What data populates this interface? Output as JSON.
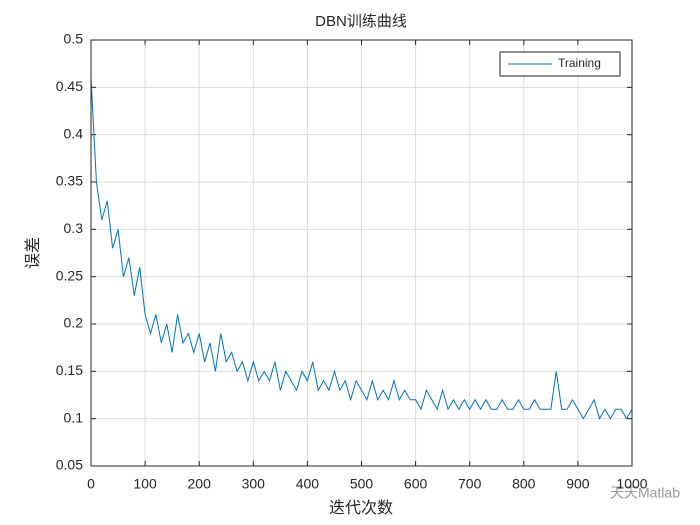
{
  "chart_data": {
    "type": "line",
    "title": "DBN训练曲线",
    "xlabel": "迭代次数",
    "ylabel": "误差",
    "x": [
      0,
      10,
      20,
      30,
      40,
      50,
      60,
      70,
      80,
      90,
      100,
      110,
      120,
      130,
      140,
      150,
      160,
      170,
      180,
      190,
      200,
      210,
      220,
      230,
      240,
      250,
      260,
      270,
      280,
      290,
      300,
      310,
      320,
      330,
      340,
      350,
      360,
      370,
      380,
      390,
      400,
      410,
      420,
      430,
      440,
      450,
      460,
      470,
      480,
      490,
      500,
      510,
      520,
      530,
      540,
      550,
      560,
      570,
      580,
      590,
      600,
      610,
      620,
      630,
      640,
      650,
      660,
      670,
      680,
      690,
      700,
      710,
      720,
      730,
      740,
      750,
      760,
      770,
      780,
      790,
      800,
      810,
      820,
      830,
      840,
      850,
      860,
      870,
      880,
      890,
      900,
      910,
      920,
      930,
      940,
      950,
      960,
      970,
      980,
      990,
      1000
    ],
    "series": [
      {
        "name": "Training",
        "color": "#0072bd",
        "values": [
          0.46,
          0.35,
          0.31,
          0.33,
          0.28,
          0.3,
          0.25,
          0.27,
          0.23,
          0.26,
          0.21,
          0.19,
          0.21,
          0.18,
          0.2,
          0.17,
          0.21,
          0.18,
          0.19,
          0.17,
          0.19,
          0.16,
          0.18,
          0.15,
          0.19,
          0.16,
          0.17,
          0.15,
          0.16,
          0.14,
          0.16,
          0.14,
          0.15,
          0.14,
          0.16,
          0.13,
          0.15,
          0.14,
          0.13,
          0.15,
          0.14,
          0.16,
          0.13,
          0.14,
          0.13,
          0.15,
          0.13,
          0.14,
          0.12,
          0.14,
          0.13,
          0.12,
          0.14,
          0.12,
          0.13,
          0.12,
          0.14,
          0.12,
          0.13,
          0.12,
          0.12,
          0.11,
          0.13,
          0.12,
          0.11,
          0.13,
          0.11,
          0.12,
          0.11,
          0.12,
          0.11,
          0.12,
          0.11,
          0.12,
          0.11,
          0.11,
          0.12,
          0.11,
          0.11,
          0.12,
          0.11,
          0.11,
          0.12,
          0.11,
          0.11,
          0.11,
          0.15,
          0.11,
          0.11,
          0.12,
          0.11,
          0.1,
          0.11,
          0.12,
          0.1,
          0.11,
          0.1,
          0.11,
          0.11,
          0.1,
          0.11
        ]
      }
    ],
    "xlim": [
      0,
      1000
    ],
    "xticks": [
      0,
      100,
      200,
      300,
      400,
      500,
      600,
      700,
      800,
      900,
      1000
    ],
    "ylim": [
      0.05,
      0.5
    ],
    "yticks": [
      0.05,
      0.1,
      0.15,
      0.2,
      0.25,
      0.3,
      0.35,
      0.4,
      0.45,
      0.5
    ],
    "grid": true,
    "legend": "northeast",
    "watermark": "天天Matlab"
  }
}
